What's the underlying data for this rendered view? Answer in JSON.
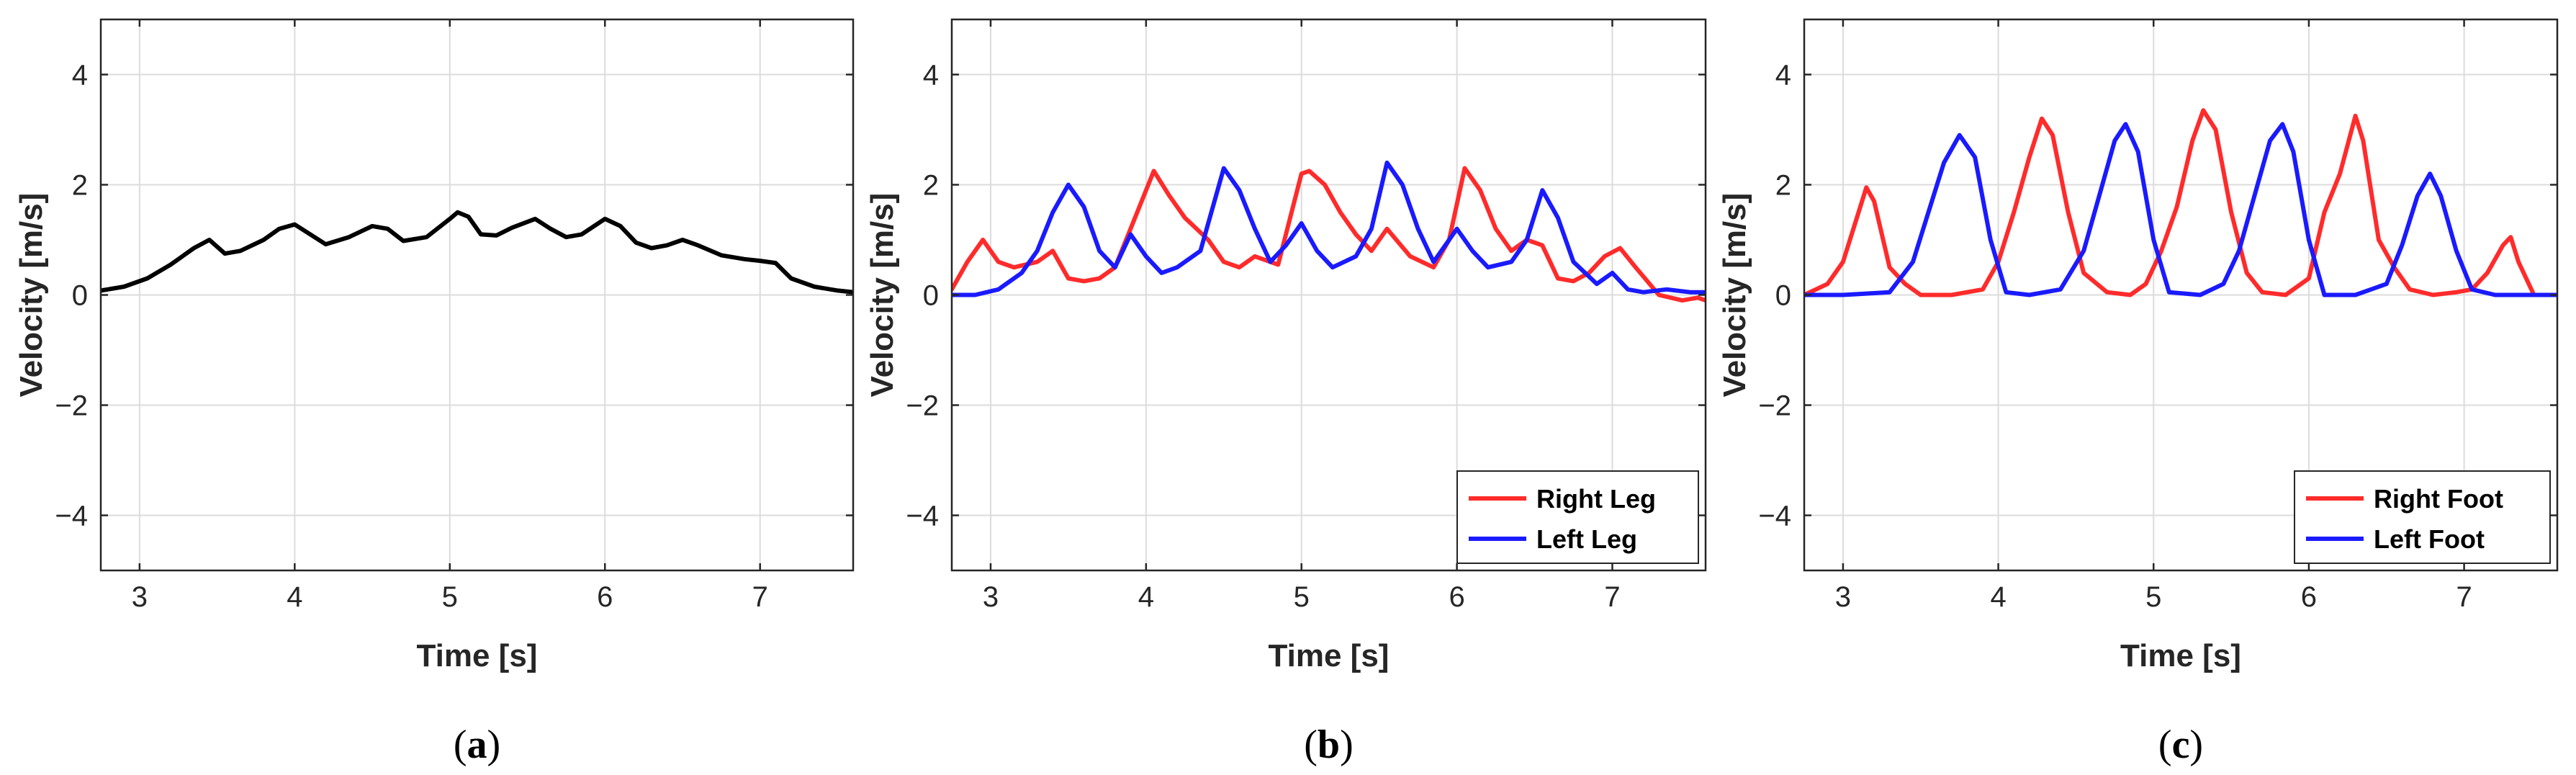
{
  "chart_data": [
    {
      "type": "line",
      "panel_label": "a",
      "xlabel": "Time [s]",
      "ylabel": "Velocity [m/s]",
      "xlim": [
        2.75,
        7.6
      ],
      "ylim": [
        -5,
        5
      ],
      "xticks": [
        3,
        4,
        5,
        6,
        7
      ],
      "yticks": [
        -4,
        -2,
        0,
        2,
        4
      ],
      "grid": true,
      "legend": null,
      "series": [
        {
          "name": "",
          "color": "#000000",
          "x": [
            2.75,
            2.9,
            3.05,
            3.2,
            3.35,
            3.45,
            3.55,
            3.65,
            3.8,
            3.9,
            4.0,
            4.1,
            4.2,
            4.35,
            4.5,
            4.6,
            4.7,
            4.85,
            5.0,
            5.05,
            5.12,
            5.2,
            5.3,
            5.4,
            5.55,
            5.65,
            5.75,
            5.85,
            6.0,
            6.1,
            6.2,
            6.3,
            6.4,
            6.5,
            6.6,
            6.75,
            6.9,
            7.0,
            7.1,
            7.2,
            7.35,
            7.5,
            7.6
          ],
          "y": [
            0.08,
            0.15,
            0.3,
            0.55,
            0.85,
            1.0,
            0.75,
            0.8,
            1.0,
            1.2,
            1.28,
            1.1,
            0.92,
            1.05,
            1.25,
            1.2,
            0.98,
            1.05,
            1.38,
            1.5,
            1.42,
            1.1,
            1.08,
            1.22,
            1.38,
            1.2,
            1.05,
            1.1,
            1.38,
            1.25,
            0.95,
            0.85,
            0.9,
            1.0,
            0.9,
            0.72,
            0.65,
            0.62,
            0.58,
            0.3,
            0.15,
            0.08,
            0.05
          ]
        }
      ]
    },
    {
      "type": "line",
      "panel_label": "b",
      "xlabel": "Time [s]",
      "ylabel": "Velocity [m/s]",
      "xlim": [
        2.75,
        7.6
      ],
      "ylim": [
        -5,
        5
      ],
      "xticks": [
        3,
        4,
        5,
        6,
        7
      ],
      "yticks": [
        -4,
        -2,
        0,
        2,
        4
      ],
      "grid": true,
      "legend": "bottom-right",
      "series": [
        {
          "name": "Right Leg",
          "color": "#ff2b2b",
          "x": [
            2.75,
            2.85,
            2.95,
            3.05,
            3.15,
            3.3,
            3.4,
            3.5,
            3.6,
            3.7,
            3.8,
            3.9,
            4.05,
            4.15,
            4.25,
            4.4,
            4.5,
            4.6,
            4.7,
            4.85,
            5.0,
            5.05,
            5.15,
            5.25,
            5.35,
            5.45,
            5.55,
            5.7,
            5.85,
            5.95,
            6.05,
            6.15,
            6.25,
            6.35,
            6.45,
            6.55,
            6.65,
            6.75,
            6.85,
            6.95,
            7.05,
            7.15,
            7.3,
            7.45,
            7.55,
            7.6
          ],
          "y": [
            0.1,
            0.6,
            1.0,
            0.6,
            0.5,
            0.6,
            0.8,
            0.3,
            0.25,
            0.3,
            0.5,
            1.2,
            2.25,
            1.8,
            1.4,
            1.0,
            0.6,
            0.5,
            0.7,
            0.55,
            2.2,
            2.25,
            2.0,
            1.5,
            1.1,
            0.8,
            1.2,
            0.7,
            0.5,
            1.0,
            2.3,
            1.9,
            1.2,
            0.8,
            1.0,
            0.9,
            0.3,
            0.25,
            0.4,
            0.7,
            0.85,
            0.5,
            0.0,
            -0.1,
            -0.05,
            -0.1
          ]
        },
        {
          "name": "Left Leg",
          "color": "#1a1aff",
          "x": [
            2.75,
            2.9,
            3.05,
            3.2,
            3.3,
            3.4,
            3.5,
            3.6,
            3.7,
            3.8,
            3.9,
            4.0,
            4.1,
            4.2,
            4.35,
            4.5,
            4.6,
            4.7,
            4.8,
            4.9,
            5.0,
            5.1,
            5.2,
            5.35,
            5.45,
            5.55,
            5.65,
            5.75,
            5.85,
            6.0,
            6.1,
            6.2,
            6.35,
            6.45,
            6.55,
            6.65,
            6.75,
            6.9,
            7.0,
            7.1,
            7.2,
            7.35,
            7.5,
            7.6
          ],
          "y": [
            0.0,
            0.0,
            0.1,
            0.4,
            0.8,
            1.5,
            2.0,
            1.6,
            0.8,
            0.5,
            1.1,
            0.7,
            0.4,
            0.5,
            0.8,
            2.3,
            1.9,
            1.2,
            0.6,
            0.9,
            1.3,
            0.8,
            0.5,
            0.7,
            1.2,
            2.4,
            2.0,
            1.2,
            0.6,
            1.2,
            0.8,
            0.5,
            0.6,
            1.0,
            1.9,
            1.4,
            0.6,
            0.2,
            0.4,
            0.1,
            0.05,
            0.1,
            0.05,
            0.05
          ]
        }
      ]
    },
    {
      "type": "line",
      "panel_label": "c",
      "xlabel": "Time [s]",
      "ylabel": "Velocity [m/s]",
      "xlim": [
        2.75,
        7.6
      ],
      "ylim": [
        -5,
        5
      ],
      "xticks": [
        3,
        4,
        5,
        6,
        7
      ],
      "yticks": [
        -4,
        -2,
        0,
        2,
        4
      ],
      "grid": true,
      "legend": "bottom-right",
      "series": [
        {
          "name": "Right Foot",
          "color": "#ff2b2b",
          "x": [
            2.75,
            2.9,
            3.0,
            3.1,
            3.15,
            3.2,
            3.3,
            3.4,
            3.5,
            3.7,
            3.9,
            4.0,
            4.1,
            4.2,
            4.28,
            4.35,
            4.45,
            4.55,
            4.7,
            4.85,
            4.95,
            5.05,
            5.15,
            5.25,
            5.32,
            5.4,
            5.5,
            5.6,
            5.7,
            5.85,
            6.0,
            6.1,
            6.2,
            6.3,
            6.35,
            6.45,
            6.55,
            6.65,
            6.8,
            6.95,
            7.05,
            7.15,
            7.25,
            7.3,
            7.35,
            7.45,
            7.6
          ],
          "y": [
            0.0,
            0.2,
            0.6,
            1.5,
            1.95,
            1.7,
            0.5,
            0.2,
            0.0,
            0.0,
            0.1,
            0.6,
            1.5,
            2.5,
            3.2,
            2.9,
            1.5,
            0.4,
            0.05,
            0.0,
            0.2,
            0.8,
            1.6,
            2.8,
            3.35,
            3.0,
            1.5,
            0.4,
            0.05,
            0.0,
            0.3,
            1.5,
            2.2,
            3.25,
            2.8,
            1.0,
            0.5,
            0.1,
            0.0,
            0.05,
            0.1,
            0.4,
            0.9,
            1.05,
            0.6,
            0.0,
            0.0
          ]
        },
        {
          "name": "Left Foot",
          "color": "#1a1aff",
          "x": [
            2.75,
            3.0,
            3.3,
            3.45,
            3.55,
            3.65,
            3.75,
            3.85,
            3.95,
            4.05,
            4.2,
            4.4,
            4.55,
            4.65,
            4.75,
            4.82,
            4.9,
            5.0,
            5.1,
            5.3,
            5.45,
            5.55,
            5.65,
            5.75,
            5.83,
            5.9,
            6.0,
            6.1,
            6.3,
            6.5,
            6.6,
            6.7,
            6.78,
            6.85,
            6.95,
            7.05,
            7.2,
            7.4,
            7.6
          ],
          "y": [
            0.0,
            0.0,
            0.05,
            0.6,
            1.5,
            2.4,
            2.9,
            2.5,
            1.0,
            0.05,
            0.0,
            0.1,
            0.8,
            1.8,
            2.8,
            3.1,
            2.6,
            1.0,
            0.05,
            0.0,
            0.2,
            0.8,
            1.8,
            2.8,
            3.1,
            2.6,
            1.0,
            0.0,
            0.0,
            0.2,
            0.9,
            1.8,
            2.2,
            1.8,
            0.8,
            0.1,
            0.0,
            0.0,
            0.0
          ]
        }
      ]
    }
  ]
}
